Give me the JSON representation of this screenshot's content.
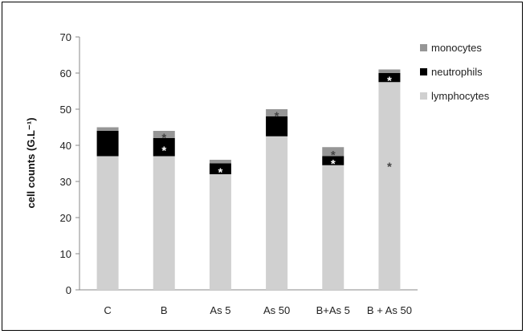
{
  "chart_data": {
    "type": "bar",
    "stacked": true,
    "categories": [
      "C",
      "B",
      "As 5",
      "As 50",
      "B+As 5",
      "B + As 50"
    ],
    "series": [
      {
        "name": "lymphocytes",
        "color": "#d0d0d0",
        "values": [
          37,
          37,
          32,
          42.5,
          34.5,
          57.5
        ]
      },
      {
        "name": "neutrophils",
        "color": "#000000",
        "values": [
          7,
          5,
          3,
          5.5,
          2.5,
          2.5
        ]
      },
      {
        "name": "monocytes",
        "color": "#969696",
        "values": [
          1,
          2,
          1,
          2,
          2.5,
          1
        ]
      }
    ],
    "legend_order": [
      "monocytes",
      "neutrophils",
      "lymphocytes"
    ],
    "legend_position": "right",
    "ylabel": "cell counts (G.L⁻¹)",
    "xlabel": "",
    "ylim": [
      0,
      70
    ],
    "yticks": [
      0,
      10,
      20,
      30,
      40,
      50,
      60,
      70
    ],
    "grid": false,
    "annotations": [
      {
        "category": "B",
        "series": "neutrophils",
        "text": "*",
        "color": "#ffffff"
      },
      {
        "category": "B",
        "series": "monocytes",
        "text": "*",
        "color": "#444444"
      },
      {
        "category": "As 5",
        "series": "neutrophils",
        "text": "*",
        "color": "#ffffff"
      },
      {
        "category": "As 50",
        "series": "monocytes",
        "text": "*",
        "color": "#444444"
      },
      {
        "category": "B+As 5",
        "series": "neutrophils",
        "text": "*",
        "color": "#ffffff"
      },
      {
        "category": "B+As 5",
        "series": "monocytes",
        "text": "*",
        "color": "#444444"
      },
      {
        "category": "B + As 50",
        "series": "neutrophils",
        "text": "*",
        "color": "#ffffff"
      },
      {
        "category": "B + As 50",
        "series": "lymphocytes",
        "text": "*",
        "color": "#444444",
        "value": 35
      }
    ]
  }
}
